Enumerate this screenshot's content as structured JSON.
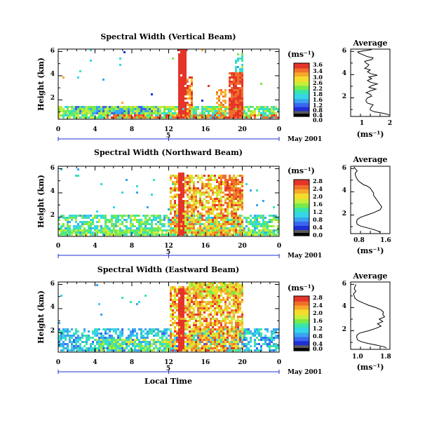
{
  "colors": {
    "scale": [
      "#000000",
      "#5a5a5a",
      "#1f2fd6",
      "#3a66f0",
      "#3aa3f0",
      "#35d6e6",
      "#3ae6a6",
      "#78ea4a",
      "#c6ee3a",
      "#f4dc2c",
      "#f6a82a",
      "#f0702a",
      "#e5352a"
    ],
    "fill": "#ffffff"
  },
  "chart_data": [
    {
      "type": "heatmap",
      "title": "Spectral Width (Vertical Beam)",
      "ylabel": "Height (km)",
      "xlabel": "",
      "x_ticks": [
        "0",
        "4",
        "8",
        "12",
        "16",
        "20",
        "0"
      ],
      "y_ticks": [
        "6",
        "4",
        "2"
      ],
      "date_label": "May 2001",
      "date_tick": "5",
      "xlim": [
        0,
        24
      ],
      "ylim": [
        0.4,
        6.2
      ],
      "colorbar": {
        "unit": "(ms⁻¹)",
        "labels": [
          "3.6",
          "3.4",
          "3.0",
          "2.6",
          "2.2",
          "1.8",
          "1.6",
          "1.2",
          "0.8",
          "0.4",
          "0.0"
        ],
        "max": 3.6
      }
    },
    {
      "type": "heatmap",
      "title": "Spectral Width (Northward Beam)",
      "ylabel": "Height (km)",
      "xlabel": "",
      "x_ticks": [
        "0",
        "4",
        "8",
        "12",
        "16",
        "20",
        "0"
      ],
      "y_ticks": [
        "6",
        "4",
        "2"
      ],
      "date_label": "May 2001",
      "date_tick": "5",
      "xlim": [
        0,
        24
      ],
      "ylim": [
        0.4,
        6.2
      ],
      "colorbar": {
        "unit": "(ms⁻¹)",
        "labels": [
          "2.8",
          "2.4",
          "2.0",
          "1.6",
          "1.2",
          "0.8",
          "0.4",
          "0.0"
        ],
        "max": 2.8
      }
    },
    {
      "type": "heatmap",
      "title": "Spectral Width (Eastward Beam)",
      "ylabel": "Height (km)",
      "xlabel": "Local Time",
      "x_ticks": [
        "0",
        "4",
        "8",
        "12",
        "16",
        "20",
        "0"
      ],
      "y_ticks": [
        "6",
        "4",
        "2"
      ],
      "date_label": "May 2001",
      "date_tick": "5",
      "xlim": [
        0,
        24
      ],
      "ylim": [
        0.4,
        6.2
      ],
      "colorbar": {
        "unit": "(ms⁻¹)",
        "labels": [
          "2.8",
          "2.4",
          "2.0",
          "1.6",
          "1.2",
          "0.8",
          "0.4",
          "0.0"
        ],
        "max": 2.8
      }
    },
    {
      "type": "line",
      "title": "Average",
      "xlabel": "(ms⁻¹)",
      "x_ticks": [
        "1",
        "2"
      ],
      "y_ticks": [
        "6",
        "4",
        "2"
      ],
      "xlim": [
        0.6,
        2.0
      ],
      "ylim": [
        0.4,
        6.2
      ],
      "series": [
        {
          "x": [
            2.0,
            1.9,
            1.7,
            1.45,
            1.3,
            1.3,
            1.35,
            1.4,
            1.2,
            1.15,
            1.15,
            1.2,
            1.35,
            1.3,
            1.15,
            1.3,
            1.5,
            1.25,
            1.35,
            1.55,
            1.3,
            1.2,
            1.35,
            1.25,
            1.55,
            1.3,
            1.2,
            1.3,
            1.1,
            1.2,
            1.25,
            1.15,
            1.1,
            1.35,
            1.4,
            1.2,
            1.1,
            1.0,
            0.9,
            0.85,
            1.05,
            1.35
          ],
          "y": [
            0.5,
            0.6,
            0.7,
            0.8,
            0.95,
            1.1,
            1.25,
            1.4,
            1.55,
            1.7,
            1.85,
            2.0,
            2.15,
            2.3,
            2.45,
            2.6,
            2.75,
            2.9,
            3.05,
            3.2,
            3.35,
            3.5,
            3.65,
            3.8,
            3.95,
            4.1,
            4.25,
            4.4,
            4.55,
            4.7,
            4.85,
            5.0,
            5.15,
            5.3,
            5.45,
            5.55,
            5.65,
            5.75,
            5.85,
            5.95,
            6.05,
            6.15
          ]
        }
      ]
    },
    {
      "type": "line",
      "title": "Average",
      "xlabel": "(ms⁻¹)",
      "x_ticks": [
        "0.8",
        "1.6"
      ],
      "y_ticks": [
        "6",
        "4",
        "2"
      ],
      "xlim": [
        0.6,
        1.8
      ],
      "ylim": [
        0.4,
        6.2
      ],
      "series": [
        {
          "x": [
            1.5,
            1.45,
            1.3,
            1.1,
            0.9,
            0.8,
            0.78,
            0.8,
            0.9,
            1.1,
            1.3,
            1.5,
            1.55,
            1.5,
            1.45,
            1.4,
            1.35,
            1.3,
            1.3,
            1.25,
            1.2,
            1.1,
            1.0,
            0.95,
            0.9,
            0.85,
            0.82,
            0.8,
            0.78,
            0.75,
            0.74,
            0.8,
            0.74,
            0.7
          ],
          "y": [
            0.5,
            0.6,
            0.75,
            0.9,
            1.05,
            1.2,
            1.4,
            1.6,
            1.8,
            2.0,
            2.2,
            2.45,
            2.7,
            2.9,
            3.1,
            3.3,
            3.5,
            3.7,
            3.9,
            4.1,
            4.3,
            4.5,
            4.6,
            4.7,
            4.8,
            4.9,
            5.0,
            5.1,
            5.2,
            5.4,
            5.6,
            5.8,
            6.0,
            6.15
          ]
        }
      ]
    },
    {
      "type": "line",
      "title": "Average",
      "xlabel": "(ms⁻¹)",
      "x_ticks": [
        "1.0",
        "1.8"
      ],
      "y_ticks": [
        "6",
        "4",
        "2"
      ],
      "xlim": [
        0.8,
        1.9
      ],
      "ylim": [
        0.4,
        6.2
      ],
      "series": [
        {
          "x": [
            1.8,
            1.75,
            1.55,
            1.3,
            1.1,
            1.0,
            0.97,
            0.97,
            1.05,
            1.3,
            1.5,
            1.65,
            1.55,
            1.7,
            1.6,
            1.75,
            1.7,
            1.72,
            1.65,
            1.5,
            1.3,
            1.15,
            1.0,
            0.92,
            0.9,
            0.88,
            0.95,
            0.9,
            0.92,
            0.95
          ],
          "y": [
            0.5,
            0.6,
            0.75,
            0.9,
            1.05,
            1.2,
            1.4,
            1.6,
            1.8,
            2.0,
            2.2,
            2.4,
            2.6,
            2.8,
            3.0,
            3.2,
            3.4,
            3.6,
            3.8,
            4.0,
            4.2,
            4.4,
            4.6,
            4.8,
            5.0,
            5.2,
            5.4,
            5.6,
            5.8,
            6.0
          ]
        }
      ]
    }
  ]
}
